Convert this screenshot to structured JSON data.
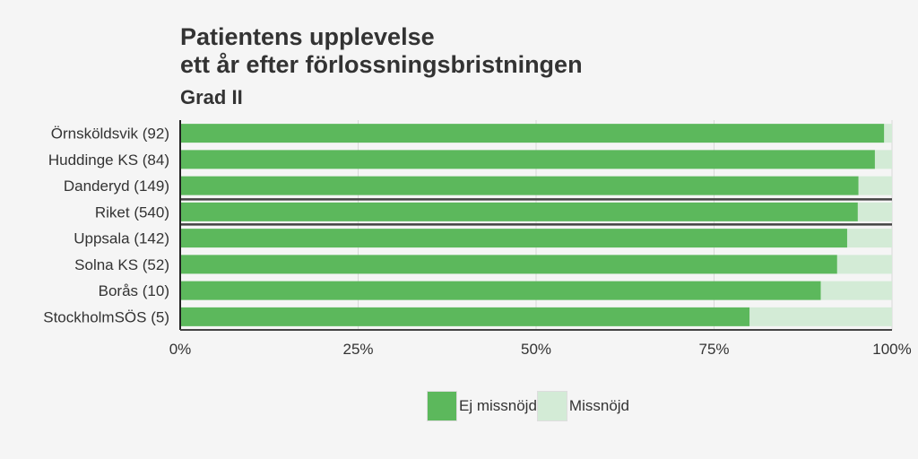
{
  "chart_data": {
    "type": "bar",
    "orientation": "horizontal",
    "stacked": true,
    "title_lines": [
      "Patientens upplevelse",
      "ett år efter förlossningsbristningen"
    ],
    "subtitle": "Grad II",
    "categories": [
      "Örnsköldsvik (92)",
      "Huddinge KS (84)",
      "Danderyd (149)",
      "Riket (540)",
      "Uppsala (142)",
      "Solna KS (52)",
      "Borås (10)",
      "StockholmSÖS (5)"
    ],
    "highlighted_category": "Riket (540)",
    "series": [
      {
        "name": "Ej missnöjd",
        "color": "#5cb85c",
        "values": [
          98.9,
          97.6,
          95.3,
          95.2,
          93.7,
          92.3,
          90.0,
          80.0
        ]
      },
      {
        "name": "Missnöjd",
        "color": "#d3ebd6",
        "values": [
          1.1,
          2.4,
          4.7,
          4.8,
          6.3,
          7.7,
          10.0,
          20.0
        ]
      }
    ],
    "xlim": [
      0,
      100
    ],
    "x_ticks": [
      "0%",
      "25%",
      "50%",
      "75%",
      "100%"
    ],
    "grid": true,
    "legend_position": "bottom"
  }
}
